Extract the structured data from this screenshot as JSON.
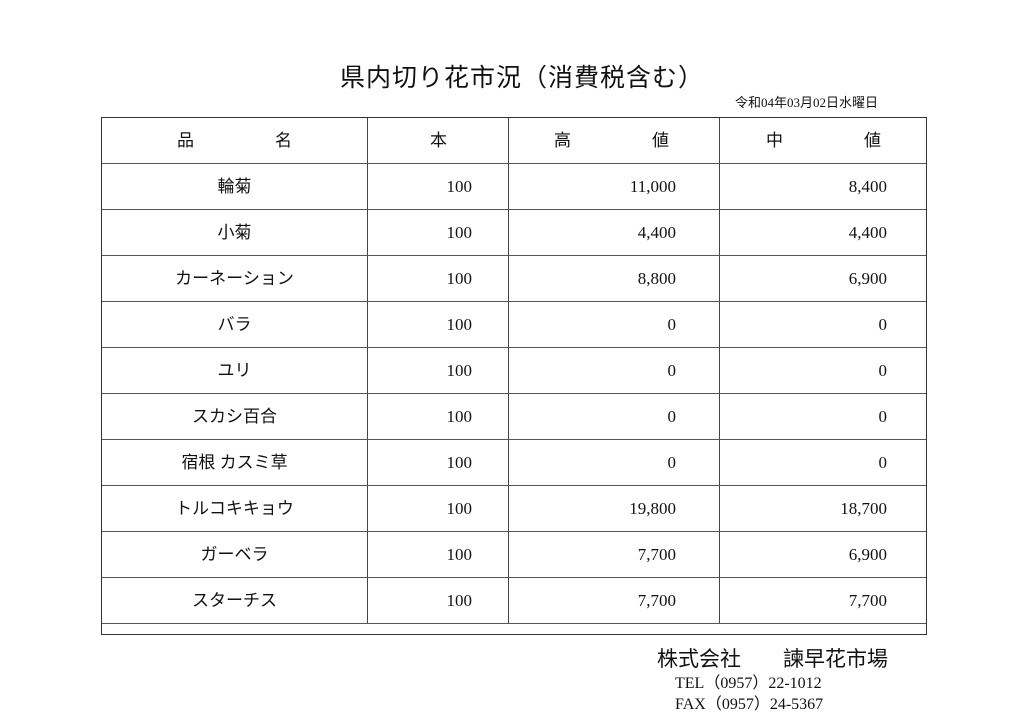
{
  "title": "県内切り花市況（消費税含む）",
  "date": "令和04年03月02日水曜日",
  "table": {
    "headers": {
      "name_1": "品",
      "name_2": "名",
      "qty": "本",
      "high_1": "高",
      "high_2": "値",
      "mid_1": "中",
      "mid_2": "値"
    },
    "rows": [
      {
        "name": "輪菊",
        "qty": "100",
        "high": "11,000",
        "mid": "8,400"
      },
      {
        "name": "小菊",
        "qty": "100",
        "high": "4,400",
        "mid": "4,400"
      },
      {
        "name": "カーネーション",
        "qty": "100",
        "high": "8,800",
        "mid": "6,900"
      },
      {
        "name": "バラ",
        "qty": "100",
        "high": "0",
        "mid": "0"
      },
      {
        "name": "ユリ",
        "qty": "100",
        "high": "0",
        "mid": "0"
      },
      {
        "name": "スカシ百合",
        "qty": "100",
        "high": "0",
        "mid": "0"
      },
      {
        "name": "宿根 カスミ草",
        "qty": "100",
        "high": "0",
        "mid": "0"
      },
      {
        "name": "トルコキキョウ",
        "qty": "100",
        "high": "19,800",
        "mid": "18,700"
      },
      {
        "name": "ガーベラ",
        "qty": "100",
        "high": "7,700",
        "mid": "6,900"
      },
      {
        "name": "スターチス",
        "qty": "100",
        "high": "7,700",
        "mid": "7,700"
      }
    ]
  },
  "footer": {
    "company": "株式会社　　諫早花市場",
    "tel": "TEL（0957）22-1012",
    "fax": "FAX（0957）24-5367"
  }
}
